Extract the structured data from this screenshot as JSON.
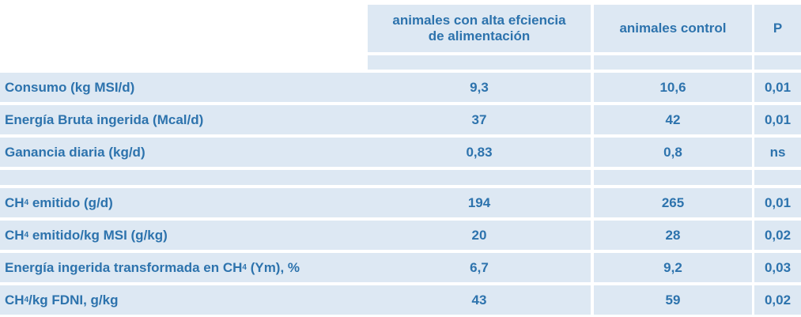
{
  "header": {
    "col_a_line1": "animales con alta efciencia",
    "col_a_line2": "de alimentación",
    "col_b": "animales control",
    "col_p": "P"
  },
  "group1": [
    {
      "label": "Consumo (kg MSI/d)",
      "a": "9,3",
      "b": "10,6",
      "p": "0,01"
    },
    {
      "label": "Energía Bruta ingerida (Mcal/d)",
      "a": "37",
      "b": "42",
      "p": "0,01"
    },
    {
      "label": "Ganancia diaria (kg/d)",
      "a": "0,83",
      "b": "0,8",
      "p": "ns"
    }
  ],
  "group2": [
    {
      "label_pre": "CH",
      "label_sub": "4",
      "label_post": " emitido (g/d)",
      "a": "194",
      "b": "265",
      "p": "0,01"
    },
    {
      "label_pre": "CH",
      "label_sub": "4",
      "label_post": " emitido/kg MSI (g/kg)",
      "a": "20",
      "b": "28",
      "p": "0,02"
    },
    {
      "label_pre": "Energía ingerida transformada en CH",
      "label_sub": "4",
      "label_post": " (Ym), %",
      "a": "6,7",
      "b": "9,2",
      "p": "0,03"
    },
    {
      "label_pre": "CH",
      "label_sub": "4",
      "label_post": "/kg FDNI, g/kg",
      "a": "43",
      "b": "59",
      "p": "0,02"
    }
  ],
  "colors": {
    "text": "#2d73ad",
    "band": "#dde8f3"
  }
}
